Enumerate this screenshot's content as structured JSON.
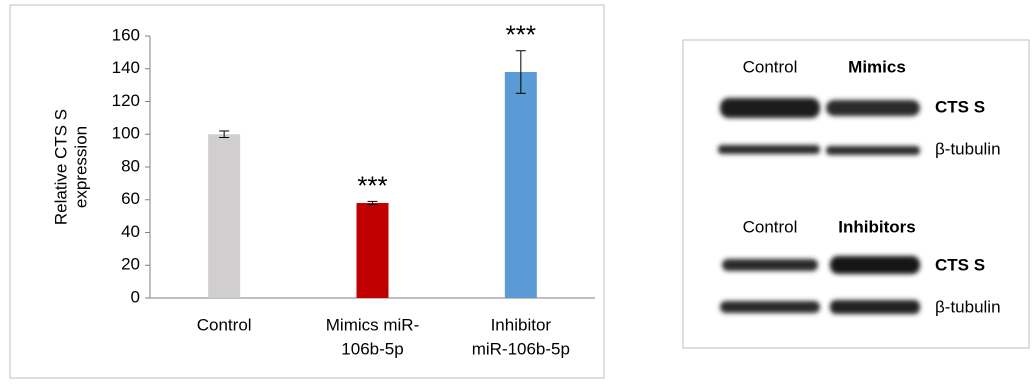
{
  "chart_data": {
    "type": "bar",
    "y_label": [
      "Relative CTS S",
      "expression"
    ],
    "categories": [
      [
        "Control"
      ],
      [
        "Mimics miR-",
        "106b-5p"
      ],
      [
        "Inhibitor",
        "miR-106b-5p"
      ]
    ],
    "values": [
      100,
      58,
      138
    ],
    "errors": [
      2,
      1,
      13
    ],
    "significance": [
      null,
      "***",
      "***"
    ],
    "colors": [
      "#d0cece",
      "#c00000",
      "#5b9bd5"
    ],
    "ylim": [
      0,
      160
    ],
    "yticks": [
      0,
      20,
      40,
      60,
      80,
      100,
      120,
      140,
      160
    ],
    "grid": false
  },
  "blots": [
    {
      "lanes": [
        "Control",
        "Mimics"
      ],
      "bands": [
        "CTS S",
        "β-tubulin"
      ]
    },
    {
      "lanes": [
        "Control",
        "Inhibitors"
      ],
      "bands": [
        "CTS S",
        "β-tubulin"
      ]
    }
  ]
}
